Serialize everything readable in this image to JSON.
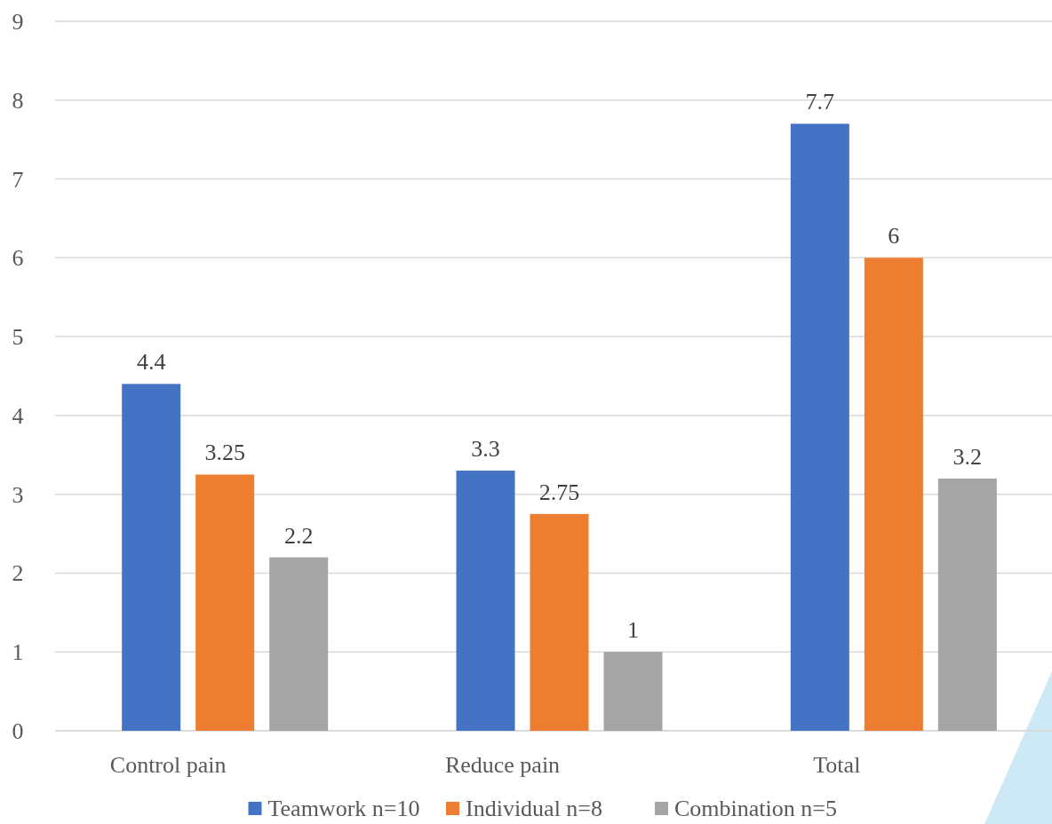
{
  "chart_data": {
    "type": "bar",
    "categories": [
      "Control pain",
      "Reduce pain",
      "Total"
    ],
    "series": [
      {
        "name": "Teamwork n=10",
        "color": "#4472c4",
        "values": [
          4.4,
          3.3,
          7.7
        ]
      },
      {
        "name": "Individual n=8",
        "color": "#ed7d31",
        "values": [
          3.25,
          2.75,
          6
        ]
      },
      {
        "name": "Combination n=5",
        "color": "#a5a5a5",
        "values": [
          2.2,
          1,
          3.2
        ]
      }
    ],
    "ylim": [
      0,
      9
    ],
    "yticks": [
      0,
      1,
      2,
      3,
      4,
      5,
      6,
      7,
      8,
      9
    ],
    "grid": "y",
    "legend": "bottom",
    "data_labels": true
  }
}
